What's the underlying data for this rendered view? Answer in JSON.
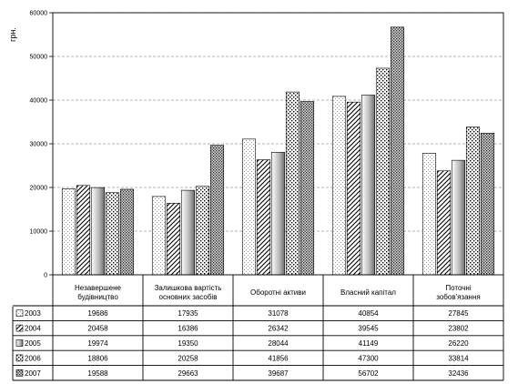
{
  "chart_data": {
    "type": "bar",
    "ylabel": "грн.",
    "ylim": [
      0,
      60000
    ],
    "ystep": 10000,
    "grid": "horizontal dashed",
    "legend": "data table below chart",
    "categories": [
      [
        "Незавершене",
        "будівництво"
      ],
      [
        "Залишкова вартість",
        "основних засобів"
      ],
      [
        "Оборотні активи"
      ],
      [
        "Власний капітал"
      ],
      [
        "Поточні",
        "зобов'язання"
      ]
    ],
    "series": [
      {
        "name": "2003",
        "values": [
          19686,
          17935,
          31078,
          40854,
          27845
        ],
        "pattern": "dots-light"
      },
      {
        "name": "2004",
        "values": [
          20458,
          16386,
          26342,
          39545,
          23802
        ],
        "pattern": "diagonal"
      },
      {
        "name": "2005",
        "values": [
          19974,
          19350,
          28044,
          41149,
          26220
        ],
        "pattern": "gradient"
      },
      {
        "name": "2006",
        "values": [
          18806,
          20258,
          41856,
          47300,
          33814
        ],
        "pattern": "dots-coarse"
      },
      {
        "name": "2007",
        "values": [
          19588,
          29663,
          39687,
          56702,
          32436
        ],
        "pattern": "dots-dense"
      }
    ]
  }
}
